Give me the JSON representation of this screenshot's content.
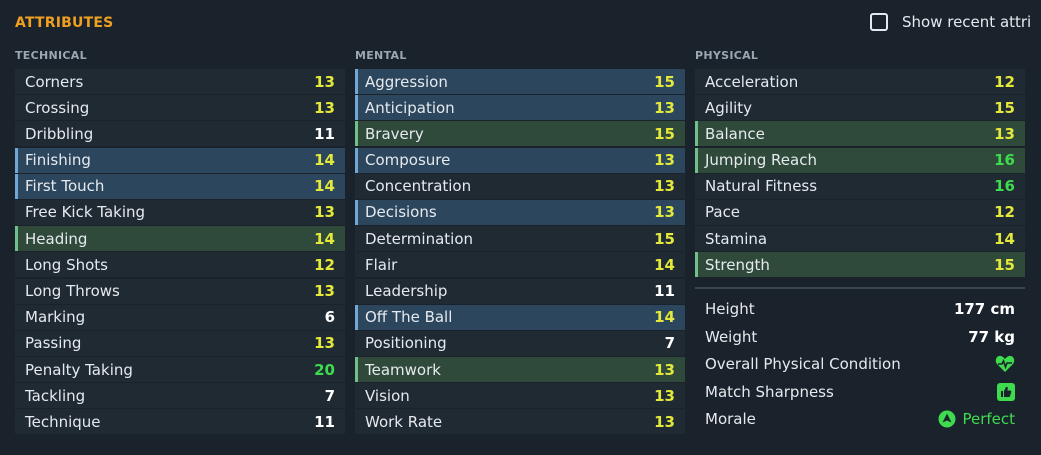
{
  "panel": {
    "title": "ATTRIBUTES"
  },
  "recent_toggle": {
    "label": "Show recent attri"
  },
  "columns": [
    {
      "header": "TECHNICAL",
      "rows": [
        {
          "label": "Corners",
          "value": "13",
          "value_color": "yellow",
          "highlight": "none"
        },
        {
          "label": "Crossing",
          "value": "13",
          "value_color": "yellow",
          "highlight": "none"
        },
        {
          "label": "Dribbling",
          "value": "11",
          "value_color": "white",
          "highlight": "none"
        },
        {
          "label": "Finishing",
          "value": "14",
          "value_color": "yellow",
          "highlight": "blue"
        },
        {
          "label": "First Touch",
          "value": "14",
          "value_color": "yellow",
          "highlight": "blue"
        },
        {
          "label": "Free Kick Taking",
          "value": "13",
          "value_color": "yellow",
          "highlight": "none"
        },
        {
          "label": "Heading",
          "value": "14",
          "value_color": "yellow",
          "highlight": "green"
        },
        {
          "label": "Long Shots",
          "value": "12",
          "value_color": "yellow",
          "highlight": "none"
        },
        {
          "label": "Long Throws",
          "value": "13",
          "value_color": "yellow",
          "highlight": "none"
        },
        {
          "label": "Marking",
          "value": "6",
          "value_color": "white",
          "highlight": "none"
        },
        {
          "label": "Passing",
          "value": "13",
          "value_color": "yellow",
          "highlight": "none"
        },
        {
          "label": "Penalty Taking",
          "value": "20",
          "value_color": "green",
          "highlight": "none"
        },
        {
          "label": "Tackling",
          "value": "7",
          "value_color": "white",
          "highlight": "none"
        },
        {
          "label": "Technique",
          "value": "11",
          "value_color": "white",
          "highlight": "none"
        }
      ]
    },
    {
      "header": "MENTAL",
      "rows": [
        {
          "label": "Aggression",
          "value": "15",
          "value_color": "yellow",
          "highlight": "blue"
        },
        {
          "label": "Anticipation",
          "value": "13",
          "value_color": "yellow",
          "highlight": "blue"
        },
        {
          "label": "Bravery",
          "value": "15",
          "value_color": "yellow",
          "highlight": "green"
        },
        {
          "label": "Composure",
          "value": "13",
          "value_color": "yellow",
          "highlight": "blue"
        },
        {
          "label": "Concentration",
          "value": "13",
          "value_color": "yellow",
          "highlight": "none"
        },
        {
          "label": "Decisions",
          "value": "13",
          "value_color": "yellow",
          "highlight": "blue"
        },
        {
          "label": "Determination",
          "value": "15",
          "value_color": "yellow",
          "highlight": "none"
        },
        {
          "label": "Flair",
          "value": "14",
          "value_color": "yellow",
          "highlight": "none"
        },
        {
          "label": "Leadership",
          "value": "11",
          "value_color": "white",
          "highlight": "none"
        },
        {
          "label": "Off The Ball",
          "value": "14",
          "value_color": "yellow",
          "highlight": "blue"
        },
        {
          "label": "Positioning",
          "value": "7",
          "value_color": "white",
          "highlight": "none"
        },
        {
          "label": "Teamwork",
          "value": "13",
          "value_color": "yellow",
          "highlight": "green"
        },
        {
          "label": "Vision",
          "value": "13",
          "value_color": "yellow",
          "highlight": "none"
        },
        {
          "label": "Work Rate",
          "value": "13",
          "value_color": "yellow",
          "highlight": "none"
        }
      ]
    },
    {
      "header": "PHYSICAL",
      "rows": [
        {
          "label": "Acceleration",
          "value": "12",
          "value_color": "yellow",
          "highlight": "none"
        },
        {
          "label": "Agility",
          "value": "15",
          "value_color": "yellow",
          "highlight": "none"
        },
        {
          "label": "Balance",
          "value": "13",
          "value_color": "yellow",
          "highlight": "green"
        },
        {
          "label": "Jumping Reach",
          "value": "16",
          "value_color": "green",
          "highlight": "green"
        },
        {
          "label": "Natural Fitness",
          "value": "16",
          "value_color": "green",
          "highlight": "none"
        },
        {
          "label": "Pace",
          "value": "12",
          "value_color": "yellow",
          "highlight": "none"
        },
        {
          "label": "Stamina",
          "value": "14",
          "value_color": "yellow",
          "highlight": "none"
        },
        {
          "label": "Strength",
          "value": "15",
          "value_color": "yellow",
          "highlight": "green"
        }
      ]
    }
  ],
  "physical_info": {
    "height": {
      "label": "Height",
      "value": "177 cm"
    },
    "weight": {
      "label": "Weight",
      "value": "77 kg"
    },
    "condition": {
      "label": "Overall Physical Condition",
      "icon": "heart-pulse-icon"
    },
    "sharpness": {
      "label": "Match Sharpness",
      "icon": "thumbs-up-icon"
    },
    "morale": {
      "label": "Morale",
      "value": "Perfect",
      "icon": "morale-up-icon"
    }
  },
  "colors": {
    "accent": "#f0a020",
    "value_white": "#ffffff",
    "value_yellow": "#e4e83a",
    "value_green": "#3fdb4e"
  }
}
